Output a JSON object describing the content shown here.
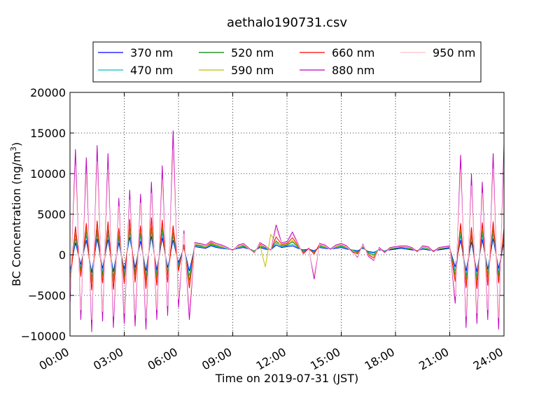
{
  "chart_data": {
    "type": "line",
    "title": "aethalo190731.csv",
    "xlabel": "Time on 2019-07-31 (JST)",
    "ylabel": "BC Concentration (ng/m",
    "ylabel_sup": "3",
    "ylabel_close": ")",
    "xlim": [
      0,
      24
    ],
    "ylim": [
      -10000,
      20000
    ],
    "grid": true,
    "grid_style": "dotted",
    "legend_position": "top-center, above axes",
    "x_unit": "hours since 00:00",
    "x_ticks": [
      {
        "value": 0,
        "label": "00:00"
      },
      {
        "value": 3,
        "label": "03:00"
      },
      {
        "value": 6,
        "label": "06:00"
      },
      {
        "value": 9,
        "label": "09:00"
      },
      {
        "value": 12,
        "label": "12:00"
      },
      {
        "value": 15,
        "label": "15:00"
      },
      {
        "value": 18,
        "label": "18:00"
      },
      {
        "value": 21,
        "label": "21:00"
      },
      {
        "value": 24,
        "label": "24:00"
      }
    ],
    "y_ticks": [
      {
        "value": 20000,
        "label": "20000"
      },
      {
        "value": 15000,
        "label": "15000"
      },
      {
        "value": 10000,
        "label": "10000"
      },
      {
        "value": 5000,
        "label": "5000"
      },
      {
        "value": 0,
        "label": "0"
      },
      {
        "value": -5000,
        "label": "−5000"
      },
      {
        "value": -10000,
        "label": "−10000"
      }
    ],
    "x": [
      0.0,
      0.3,
      0.6,
      0.9,
      1.2,
      1.5,
      1.8,
      2.1,
      2.4,
      2.7,
      3.0,
      3.3,
      3.6,
      3.9,
      4.2,
      4.5,
      4.8,
      5.1,
      5.4,
      5.7,
      6.0,
      6.3,
      6.6,
      6.9,
      7.2,
      7.5,
      7.8,
      8.1,
      8.4,
      8.7,
      9.0,
      9.3,
      9.6,
      9.9,
      10.2,
      10.5,
      10.8,
      11.1,
      11.4,
      11.7,
      12.0,
      12.3,
      12.6,
      12.9,
      13.2,
      13.5,
      13.8,
      14.1,
      14.4,
      14.7,
      15.0,
      15.3,
      15.6,
      15.9,
      16.2,
      16.5,
      16.8,
      17.1,
      17.4,
      17.7,
      18.0,
      18.3,
      18.6,
      18.9,
      19.2,
      19.5,
      19.8,
      20.1,
      20.4,
      20.7,
      21.0,
      21.3,
      21.6,
      21.9,
      22.2,
      22.5,
      22.8,
      23.1,
      23.4,
      23.7,
      24.0
    ],
    "series": [
      {
        "name": "370 nm",
        "color": "#0000ff",
        "values": [
          -2000,
          1500,
          -1200,
          1800,
          -2200,
          2000,
          -1700,
          1900,
          -2100,
          1500,
          -1800,
          2200,
          -1600,
          1700,
          -2000,
          2300,
          -1900,
          2100,
          -1600,
          1800,
          -1000,
          900,
          -2000,
          1000,
          900,
          800,
          1100,
          900,
          800,
          700,
          600,
          800,
          900,
          700,
          500,
          900,
          700,
          600,
          1200,
          900,
          1000,
          1100,
          800,
          600,
          700,
          500,
          900,
          800,
          700,
          800,
          900,
          700,
          600,
          500,
          800,
          400,
          300,
          600,
          500,
          600,
          700,
          800,
          700,
          600,
          500,
          700,
          600,
          500,
          600,
          700,
          800,
          -1500,
          1800,
          -2000,
          1600,
          -2100,
          1900,
          -1800,
          2000,
          -1700,
          1500
        ]
      },
      {
        "name": "470 nm",
        "color": "#00bfbf",
        "values": [
          -2500,
          2000,
          -1600,
          2400,
          -2800,
          2600,
          -2200,
          2500,
          -2700,
          2000,
          -2300,
          2800,
          -2100,
          2300,
          -2600,
          2900,
          -2400,
          2700,
          -2100,
          2300,
          -1300,
          1000,
          -2600,
          1100,
          1000,
          900,
          1200,
          1000,
          900,
          700,
          600,
          900,
          1000,
          700,
          500,
          1000,
          800,
          600,
          1400,
          1000,
          1100,
          1300,
          900,
          500,
          700,
          400,
          1000,
          900,
          700,
          900,
          1000,
          800,
          600,
          400,
          900,
          300,
          200,
          700,
          500,
          700,
          800,
          900,
          800,
          700,
          500,
          800,
          700,
          500,
          700,
          800,
          900,
          -2000,
          2400,
          -2600,
          2100,
          -2700,
          2500,
          -2300,
          2600,
          -2200,
          2000
        ]
      },
      {
        "name": "520 nm",
        "color": "#008000",
        "values": [
          -3000,
          2600,
          -2000,
          3000,
          -3400,
          3200,
          -2700,
          3100,
          -3300,
          2500,
          -2800,
          3400,
          -2600,
          2800,
          -3200,
          3500,
          -2900,
          3300,
          -2600,
          2800,
          -1600,
          1100,
          -3200,
          1200,
          1100,
          1000,
          1300,
          1100,
          1000,
          800,
          600,
          1000,
          1100,
          700,
          400,
          1100,
          900,
          600,
          1700,
          1100,
          1200,
          1600,
          1000,
          400,
          700,
          300,
          1100,
          1000,
          700,
          1000,
          1100,
          900,
          500,
          300,
          1000,
          200,
          0,
          700,
          400,
          700,
          800,
          900,
          900,
          700,
          500,
          900,
          800,
          500,
          700,
          800,
          900,
          -2500,
          3000,
          -3200,
          2600,
          -3300,
          3100,
          -2900,
          3200,
          -2700,
          2500
        ]
      },
      {
        "name": "590 nm",
        "color": "#bfbf00",
        "values": [
          -3400,
          3000,
          -2300,
          3400,
          -3900,
          3700,
          -3100,
          3600,
          -3800,
          2900,
          -3200,
          3900,
          -3000,
          3200,
          -3700,
          4000,
          -3300,
          3800,
          -3000,
          3200,
          -1800,
          1200,
          -3600,
          1300,
          1200,
          1000,
          1400,
          1200,
          1000,
          800,
          600,
          1000,
          1200,
          700,
          400,
          1200,
          -1500,
          2500,
          1500,
          1200,
          1300,
          1800,
          1100,
          300,
          700,
          200,
          1200,
          1000,
          700,
          1000,
          1200,
          900,
          500,
          200,
          1100,
          100,
          -200,
          800,
          400,
          800,
          900,
          1000,
          900,
          800,
          500,
          900,
          800,
          500,
          800,
          900,
          1000,
          -2900,
          3400,
          -3600,
          3000,
          -3700,
          3500,
          -3300,
          3600,
          -3100,
          2900
        ]
      },
      {
        "name": "660 nm",
        "color": "#ff0000",
        "values": [
          -3800,
          3500,
          -2700,
          3900,
          -4400,
          4200,
          -3500,
          4100,
          -4300,
          3300,
          -3600,
          4400,
          -3400,
          3600,
          -4200,
          4600,
          -3800,
          4300,
          -3400,
          3600,
          -2000,
          1300,
          -4100,
          1400,
          1300,
          1100,
          1500,
          1300,
          1100,
          800,
          600,
          1100,
          1300,
          700,
          300,
          1300,
          1000,
          600,
          2200,
          1300,
          1400,
          2100,
          1200,
          200,
          800,
          100,
          1300,
          1100,
          700,
          1100,
          1300,
          1000,
          400,
          100,
          1200,
          0,
          -400,
          800,
          300,
          800,
          900,
          1000,
          1000,
          800,
          400,
          1000,
          900,
          400,
          800,
          900,
          1000,
          -3300,
          3900,
          -4100,
          3400,
          -4200,
          4000,
          -3800,
          4100,
          -3500,
          3300
        ]
      },
      {
        "name": "880 nm",
        "color": "#bf00bf",
        "values": [
          -6000,
          13000,
          -8000,
          12000,
          -9500,
          13500,
          -8200,
          12500,
          -9000,
          7000,
          -8500,
          8000,
          -8800,
          7500,
          -9200,
          9000,
          -8000,
          11000,
          -7500,
          15300,
          -6500,
          3000,
          -8000,
          1500,
          1400,
          1200,
          1700,
          1400,
          1200,
          900,
          500,
          1200,
          1400,
          800,
          200,
          1500,
          1100,
          500,
          3700,
          1500,
          1600,
          2800,
          1400,
          0,
          800,
          -3000,
          1400,
          1200,
          700,
          1200,
          1400,
          1100,
          400,
          -300,
          1300,
          -200,
          -700,
          900,
          300,
          900,
          1000,
          1100,
          1100,
          900,
          400,
          1100,
          1000,
          400,
          900,
          1000,
          1100,
          -6000,
          12300,
          -9000,
          10000,
          -8500,
          9000,
          -8000,
          12500,
          -9200,
          13600
        ]
      },
      {
        "name": "950 nm",
        "color": "#ffc0cb",
        "values": [
          -5000,
          11000,
          -6800,
          10000,
          -8000,
          11500,
          -7000,
          10500,
          -7600,
          6000,
          -7200,
          6800,
          -7400,
          6400,
          -7800,
          7600,
          -6800,
          9300,
          -6300,
          13000,
          -5500,
          2600,
          -6800,
          1400,
          1300,
          1100,
          1600,
          1300,
          1100,
          800,
          500,
          1100,
          1300,
          700,
          200,
          1400,
          1000,
          500,
          3200,
          1400,
          1500,
          2500,
          1300,
          0,
          700,
          -2500,
          1300,
          1100,
          600,
          1100,
          1300,
          1000,
          300,
          -200,
          1200,
          -100,
          -600,
          800,
          200,
          800,
          900,
          1000,
          1000,
          800,
          300,
          1000,
          900,
          300,
          800,
          900,
          1000,
          -5100,
          10500,
          -7600,
          8500,
          -7200,
          7600,
          -6800,
          10600,
          -7800,
          11600
        ]
      }
    ]
  }
}
